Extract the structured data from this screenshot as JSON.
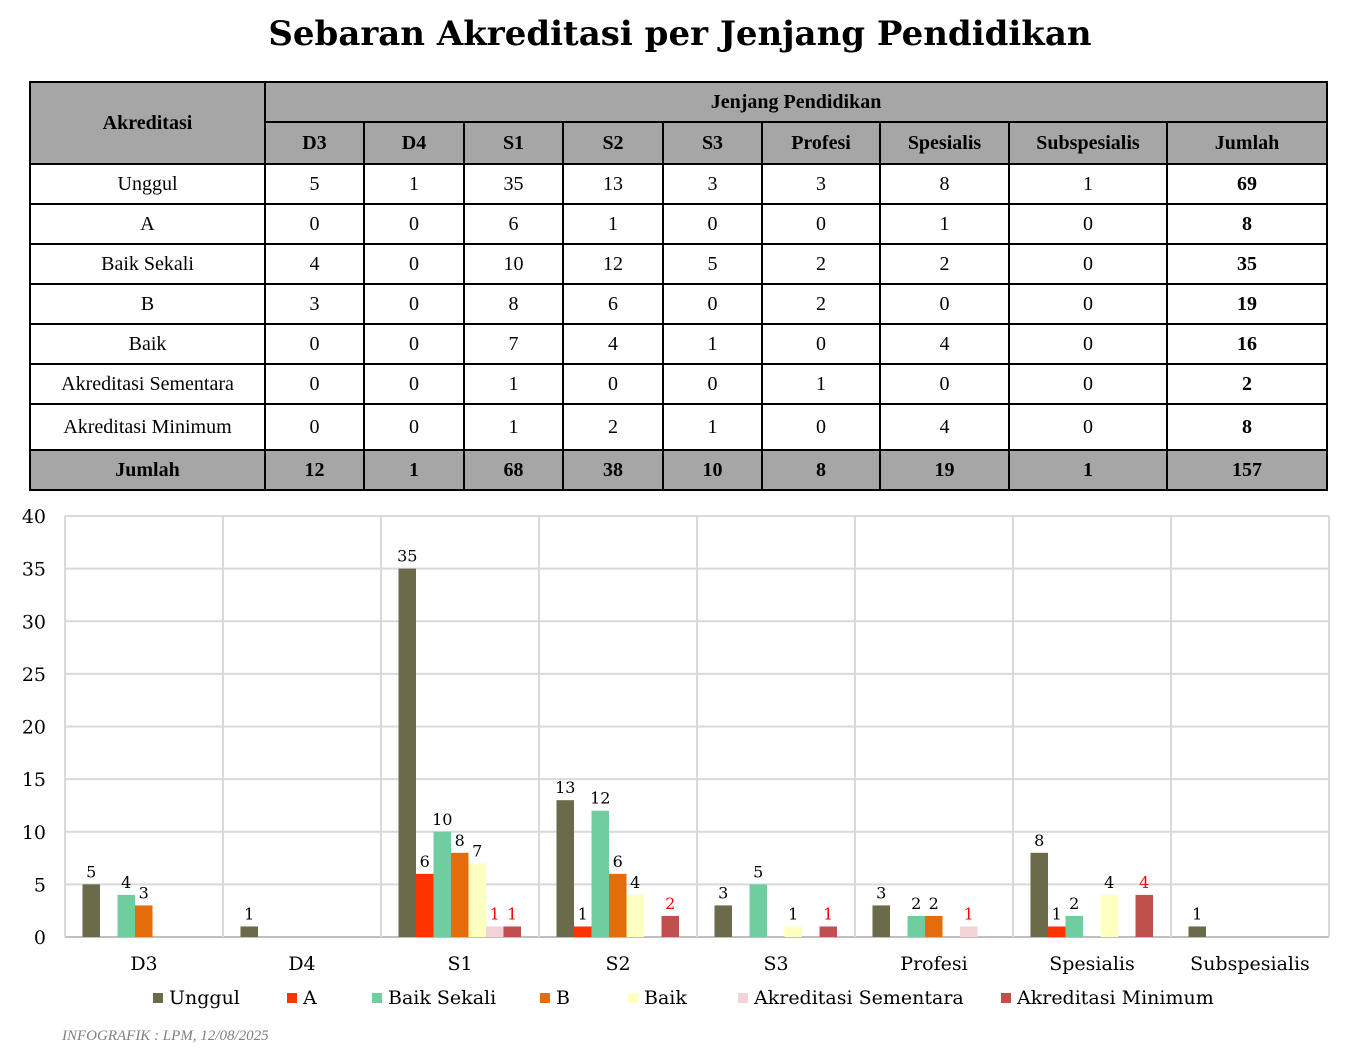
{
  "title": "Sebaran Akreditasi per Jenjang Pendidikan",
  "table": {
    "row_header": "Akreditasi",
    "group_header": "Jenjang Pendidikan",
    "columns": [
      "D3",
      "D4",
      "S1",
      "S2",
      "S3",
      "Profesi",
      "Spesialis",
      "Subspesialis",
      "Jumlah"
    ],
    "rows": [
      {
        "label": "Unggul",
        "values": [
          "5",
          "1",
          "35",
          "13",
          "3",
          "3",
          "8",
          "1",
          "69"
        ]
      },
      {
        "label": "A",
        "values": [
          "0",
          "0",
          "6",
          "1",
          "0",
          "0",
          "1",
          "0",
          "8"
        ]
      },
      {
        "label": "Baik Sekali",
        "values": [
          "4",
          "0",
          "10",
          "12",
          "5",
          "2",
          "2",
          "0",
          "35"
        ]
      },
      {
        "label": "B",
        "values": [
          "3",
          "0",
          "8",
          "6",
          "0",
          "2",
          "0",
          "0",
          "19"
        ]
      },
      {
        "label": "Baik",
        "values": [
          "0",
          "0",
          "7",
          "4",
          "1",
          "0",
          "4",
          "0",
          "16"
        ]
      },
      {
        "label": "Akreditasi Sementara",
        "values": [
          "0",
          "0",
          "1",
          "0",
          "0",
          "1",
          "0",
          "0",
          "2"
        ]
      },
      {
        "label": "Akreditasi Minimum",
        "values": [
          "0",
          "0",
          "1",
          "2",
          "1",
          "0",
          "4",
          "0",
          "8"
        ]
      }
    ],
    "total": {
      "label": "Jumlah",
      "values": [
        "12",
        "1",
        "68",
        "38",
        "10",
        "8",
        "19",
        "1",
        "157"
      ]
    }
  },
  "chart_data": {
    "type": "bar",
    "categories": [
      "D3",
      "D4",
      "S1",
      "S2",
      "S3",
      "Profesi",
      "Spesialis",
      "Subspesialis"
    ],
    "series": [
      {
        "name": "Unggul",
        "color": "#6b6a4a",
        "values": [
          5,
          1,
          35,
          13,
          3,
          3,
          8,
          1
        ]
      },
      {
        "name": "A",
        "color": "#ff3300",
        "values": [
          0,
          0,
          6,
          1,
          0,
          0,
          1,
          0
        ]
      },
      {
        "name": "Baik Sekali",
        "color": "#70cda0",
        "values": [
          4,
          0,
          10,
          12,
          5,
          2,
          2,
          0
        ]
      },
      {
        "name": "B",
        "color": "#e46c0a",
        "values": [
          3,
          0,
          8,
          6,
          0,
          2,
          0,
          0
        ]
      },
      {
        "name": "Baik",
        "color": "#ffffc0",
        "values": [
          0,
          0,
          7,
          4,
          1,
          0,
          4,
          0
        ]
      },
      {
        "name": "Akreditasi Sementara",
        "color": "#f2d4d7",
        "values": [
          0,
          0,
          1,
          0,
          0,
          1,
          0,
          0
        ]
      },
      {
        "name": "Akreditasi Minimum",
        "color": "#c0504d",
        "values": [
          0,
          0,
          1,
          2,
          1,
          0,
          4,
          0
        ]
      }
    ],
    "ylim": [
      0,
      40
    ],
    "yticks": [
      0,
      5,
      10,
      15,
      20,
      25,
      30,
      35,
      40
    ],
    "highlight_label_color": "#ff0000",
    "highlight_series": [
      "Akreditasi Sementara",
      "Akreditasi Minimum"
    ],
    "grid": true,
    "legend": "bottom"
  },
  "footer": "INFOGRAFIK : LPM, 12/08/2025"
}
